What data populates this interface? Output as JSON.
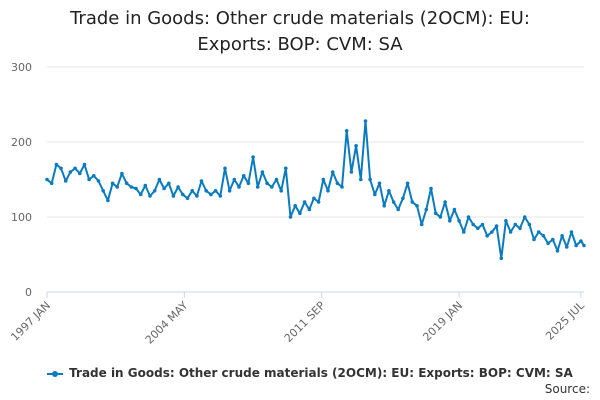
{
  "chart_data": {
    "type": "line",
    "title_line1": "Trade in Goods: Other crude materials (2OCM): EU:",
    "title_line2": "Exports: BOP: CVM: SA",
    "ylim": [
      0,
      300
    ],
    "y_ticks": [
      "0",
      "100",
      "200",
      "300"
    ],
    "x_tick_labels": [
      "1997 JAN",
      "2004 MAY",
      "2011 SEP",
      "2019 JAN",
      "2025 JUL"
    ],
    "x_range": [
      "1997-01",
      "2025-09"
    ],
    "grid": true,
    "legend_position": "bottom",
    "series": [
      {
        "name": "Trade in Goods: Other crude materials (2OCM): EU: Exports: BOP: CVM: SA",
        "color": "#0a7bbf",
        "points": [
          [
            "1997-01",
            150
          ],
          [
            "1997-04",
            145
          ],
          [
            "1997-07",
            170
          ],
          [
            "1997-10",
            165
          ],
          [
            "1998-01",
            148
          ],
          [
            "1998-04",
            160
          ],
          [
            "1998-07",
            165
          ],
          [
            "1998-10",
            158
          ],
          [
            "1999-01",
            170
          ],
          [
            "1999-04",
            150
          ],
          [
            "1999-07",
            155
          ],
          [
            "1999-10",
            148
          ],
          [
            "2000-01",
            135
          ],
          [
            "2000-04",
            122
          ],
          [
            "2000-07",
            145
          ],
          [
            "2000-10",
            140
          ],
          [
            "2001-01",
            158
          ],
          [
            "2001-04",
            145
          ],
          [
            "2001-07",
            140
          ],
          [
            "2001-10",
            138
          ],
          [
            "2002-01",
            130
          ],
          [
            "2002-04",
            142
          ],
          [
            "2002-07",
            128
          ],
          [
            "2002-10",
            135
          ],
          [
            "2003-01",
            150
          ],
          [
            "2003-04",
            138
          ],
          [
            "2003-07",
            145
          ],
          [
            "2003-10",
            128
          ],
          [
            "2004-01",
            140
          ],
          [
            "2004-04",
            130
          ],
          [
            "2004-07",
            125
          ],
          [
            "2004-10",
            135
          ],
          [
            "2005-01",
            128
          ],
          [
            "2005-04",
            148
          ],
          [
            "2005-07",
            135
          ],
          [
            "2005-10",
            130
          ],
          [
            "2006-01",
            135
          ],
          [
            "2006-04",
            128
          ],
          [
            "2006-07",
            165
          ],
          [
            "2006-10",
            135
          ],
          [
            "2007-01",
            150
          ],
          [
            "2007-04",
            140
          ],
          [
            "2007-07",
            155
          ],
          [
            "2007-10",
            145
          ],
          [
            "2008-01",
            180
          ],
          [
            "2008-04",
            140
          ],
          [
            "2008-07",
            160
          ],
          [
            "2008-10",
            145
          ],
          [
            "2009-01",
            140
          ],
          [
            "2009-04",
            150
          ],
          [
            "2009-07",
            135
          ],
          [
            "2009-10",
            165
          ],
          [
            "2010-01",
            100
          ],
          [
            "2010-04",
            115
          ],
          [
            "2010-07",
            105
          ],
          [
            "2010-10",
            120
          ],
          [
            "2011-01",
            110
          ],
          [
            "2011-04",
            125
          ],
          [
            "2011-07",
            120
          ],
          [
            "2011-10",
            150
          ],
          [
            "2012-01",
            135
          ],
          [
            "2012-04",
            160
          ],
          [
            "2012-07",
            145
          ],
          [
            "2012-10",
            140
          ],
          [
            "2013-01",
            215
          ],
          [
            "2013-04",
            160
          ],
          [
            "2013-07",
            195
          ],
          [
            "2013-10",
            150
          ],
          [
            "2014-01",
            228
          ],
          [
            "2014-04",
            150
          ],
          [
            "2014-07",
            130
          ],
          [
            "2014-10",
            145
          ],
          [
            "2015-01",
            115
          ],
          [
            "2015-04",
            135
          ],
          [
            "2015-07",
            120
          ],
          [
            "2015-10",
            110
          ],
          [
            "2016-01",
            125
          ],
          [
            "2016-04",
            145
          ],
          [
            "2016-07",
            120
          ],
          [
            "2016-10",
            115
          ],
          [
            "2017-01",
            90
          ],
          [
            "2017-04",
            110
          ],
          [
            "2017-07",
            138
          ],
          [
            "2017-10",
            105
          ],
          [
            "2018-01",
            100
          ],
          [
            "2018-04",
            120
          ],
          [
            "2018-07",
            95
          ],
          [
            "2018-10",
            110
          ],
          [
            "2019-01",
            95
          ],
          [
            "2019-04",
            80
          ],
          [
            "2019-07",
            100
          ],
          [
            "2019-10",
            90
          ],
          [
            "2020-01",
            85
          ],
          [
            "2020-04",
            90
          ],
          [
            "2020-07",
            75
          ],
          [
            "2020-10",
            80
          ],
          [
            "2021-01",
            88
          ],
          [
            "2021-04",
            45
          ],
          [
            "2021-07",
            95
          ],
          [
            "2021-10",
            80
          ],
          [
            "2022-01",
            90
          ],
          [
            "2022-04",
            85
          ],
          [
            "2022-07",
            100
          ],
          [
            "2022-10",
            90
          ],
          [
            "2023-01",
            70
          ],
          [
            "2023-04",
            80
          ],
          [
            "2023-07",
            75
          ],
          [
            "2023-10",
            65
          ],
          [
            "2024-01",
            70
          ],
          [
            "2024-04",
            55
          ],
          [
            "2024-07",
            75
          ],
          [
            "2024-10",
            60
          ],
          [
            "2025-01",
            80
          ],
          [
            "2025-04",
            62
          ],
          [
            "2025-07",
            68
          ],
          [
            "2025-09",
            62
          ]
        ]
      }
    ]
  },
  "legend": {
    "label": "Trade in Goods: Other crude materials (2OCM): EU: Exports: BOP: CVM: SA"
  },
  "footer": {
    "source_label": "Source:"
  }
}
